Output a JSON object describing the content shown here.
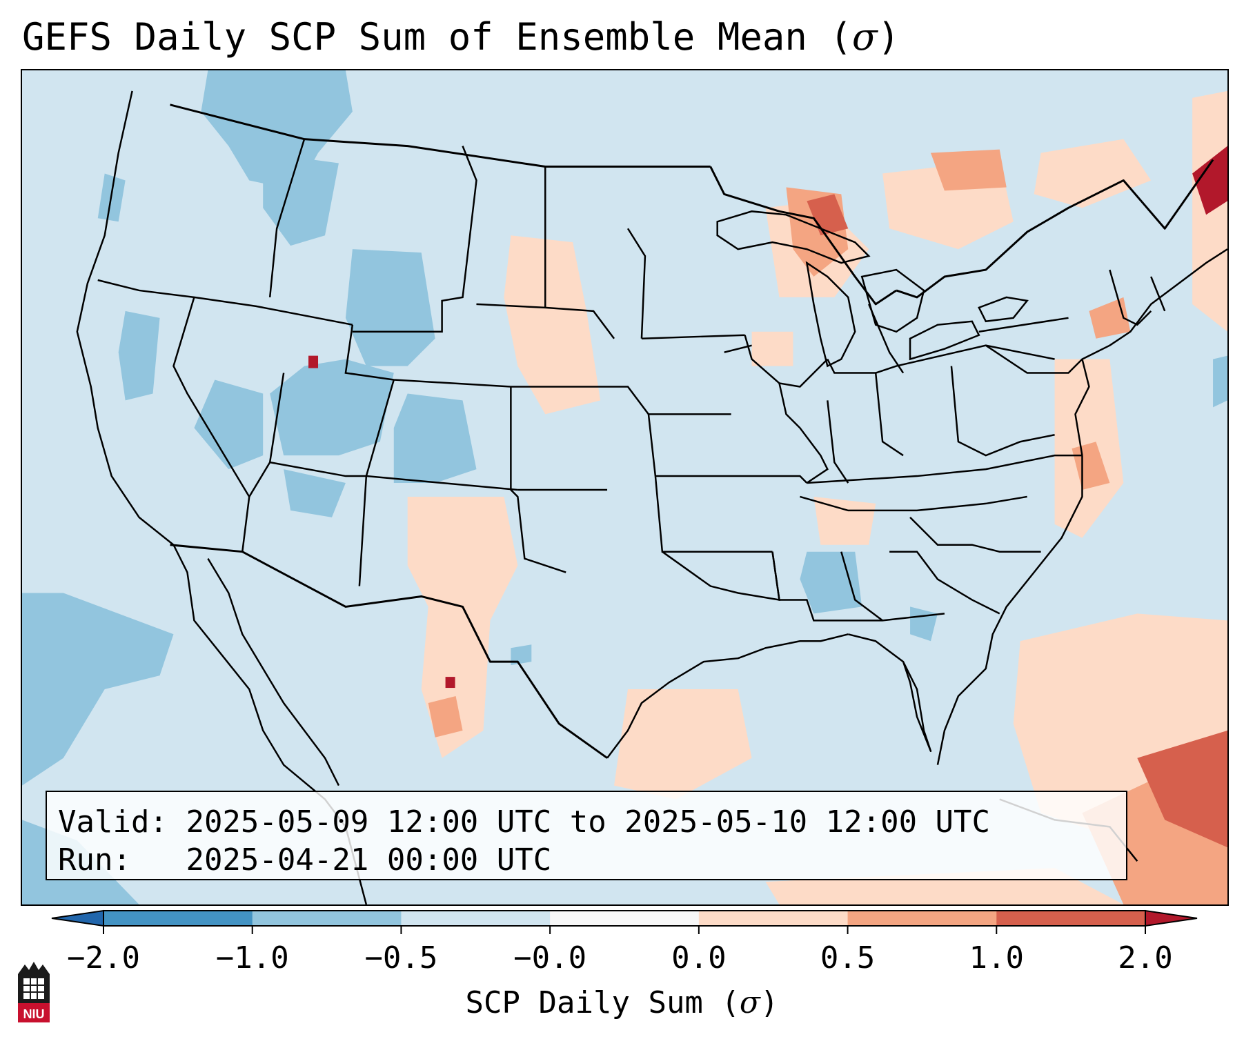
{
  "title": {
    "prefix": "GEFS Daily SCP Sum of Ensemble Mean (",
    "symbol": "σ",
    "suffix": ")"
  },
  "info": {
    "valid_label": "Valid:",
    "valid_value": "2025-05-09 12:00 UTC to 2025-05-10 12:00 UTC",
    "run_label": "Run:",
    "run_value": "2025-04-21 00:00 UTC"
  },
  "colorbar": {
    "label_prefix": "SCP Daily Sum (",
    "label_symbol": "σ",
    "label_suffix": ")",
    "ticks": [
      "−2.0",
      "−1.0",
      "−0.5",
      "−0.0",
      "0.0",
      "0.5",
      "1.0",
      "2.0"
    ],
    "colors": [
      "#4393c3",
      "#92c5de",
      "#d1e5f0",
      "#f7f7f7",
      "#fddbc7",
      "#f4a582",
      "#d6604d"
    ],
    "extend_low_color": "#2166ac",
    "extend_high_color": "#b2182b"
  },
  "legend_colors": {
    "strong_negative": "#4393c3",
    "negative": "#92c5de",
    "near_zero_negative": "#d1e5f0",
    "near_zero_positive": "#fddbc7",
    "positive": "#f4a582",
    "strong_positive": "#d6604d",
    "extreme_positive": "#b2182b"
  },
  "logo": {
    "text": "NIU",
    "icon": "niu-logo-icon"
  }
}
